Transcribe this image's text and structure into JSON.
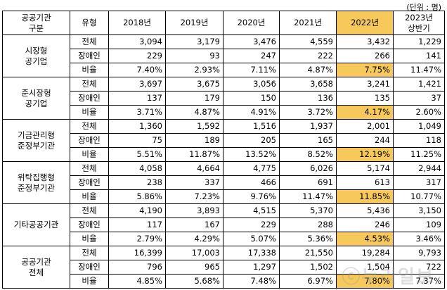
{
  "unit": "(단위 : 명)",
  "header": {
    "group": "공공기관\n구분",
    "type": "유형",
    "years": [
      "2018년",
      "2019년",
      "2020년",
      "2021년",
      "2022년",
      "2023년\n상반기"
    ]
  },
  "groups": [
    {
      "name": "시장형\n공기업",
      "rows": [
        {
          "type": "전체",
          "values": [
            "3,094",
            "3,179",
            "3,476",
            "4,559",
            "3,432",
            "1,229"
          ]
        },
        {
          "type": "장애인",
          "values": [
            "229",
            "93",
            "247",
            "222",
            "266",
            "141"
          ]
        },
        {
          "type": "비율",
          "values": [
            "7.40%",
            "2.93%",
            "7.11%",
            "4.87%",
            "7.75%",
            "11.47%"
          ]
        }
      ]
    },
    {
      "name": "준시장형\n공기업",
      "rows": [
        {
          "type": "전체",
          "values": [
            "3,697",
            "3,675",
            "3,056",
            "3,658",
            "3,241",
            "1,421"
          ]
        },
        {
          "type": "장애인",
          "values": [
            "137",
            "179",
            "150",
            "136",
            "135",
            "37"
          ]
        },
        {
          "type": "비율",
          "values": [
            "3.71%",
            "4.87%",
            "4.91%",
            "3.72%",
            "4.17%",
            "2.60%"
          ]
        }
      ]
    },
    {
      "name": "기금관리형\n준정부기관",
      "rows": [
        {
          "type": "전체",
          "values": [
            "1,360",
            "1,592",
            "1,516",
            "1,937",
            "2,001",
            "1,049"
          ]
        },
        {
          "type": "장애인",
          "values": [
            "75",
            "189",
            "205",
            "165",
            "244",
            "118"
          ]
        },
        {
          "type": "비율",
          "values": [
            "5.51%",
            "11.87%",
            "13.52%",
            "8.52%",
            "12.19%",
            "11.25%"
          ]
        }
      ]
    },
    {
      "name": "위탁집행형\n준정부기관",
      "rows": [
        {
          "type": "전체",
          "values": [
            "4,058",
            "4,664",
            "4,775",
            "6,026",
            "5,174",
            "2,944"
          ]
        },
        {
          "type": "장애인",
          "values": [
            "238",
            "337",
            "466",
            "691",
            "613",
            "317"
          ]
        },
        {
          "type": "비율",
          "values": [
            "5.86%",
            "7.23%",
            "9.76%",
            "11.47%",
            "11.85%",
            "10.77%"
          ]
        }
      ]
    },
    {
      "name": "기타공공기관",
      "rows": [
        {
          "type": "전체",
          "values": [
            "4,190",
            "3,893",
            "4,515",
            "5,370",
            "5,436",
            "3,150"
          ]
        },
        {
          "type": "장애인",
          "values": [
            "117",
            "167",
            "229",
            "288",
            "246",
            "109"
          ]
        },
        {
          "type": "비율",
          "values": [
            "2.79%",
            "4.29%",
            "5.07%",
            "5.36%",
            "4.53%",
            "3.46%"
          ]
        }
      ]
    },
    {
      "name": "공공기관\n전체",
      "rows": [
        {
          "type": "전체",
          "values": [
            "16,399",
            "17,003",
            "17,338",
            "21,550",
            "19,284",
            "9,793"
          ]
        },
        {
          "type": "장애인",
          "values": [
            "796",
            "965",
            "1,297",
            "1,502",
            "1,504",
            "722"
          ]
        },
        {
          "type": "비율",
          "values": [
            "4.85%",
            "5.68%",
            "7.48%",
            "6.97%",
            "7.80%",
            "7.37%"
          ]
        }
      ]
    }
  ],
  "highlight_year_index": 4,
  "highlight_color": "#f6c95a",
  "watermark": "ⓒ누리일보"
}
